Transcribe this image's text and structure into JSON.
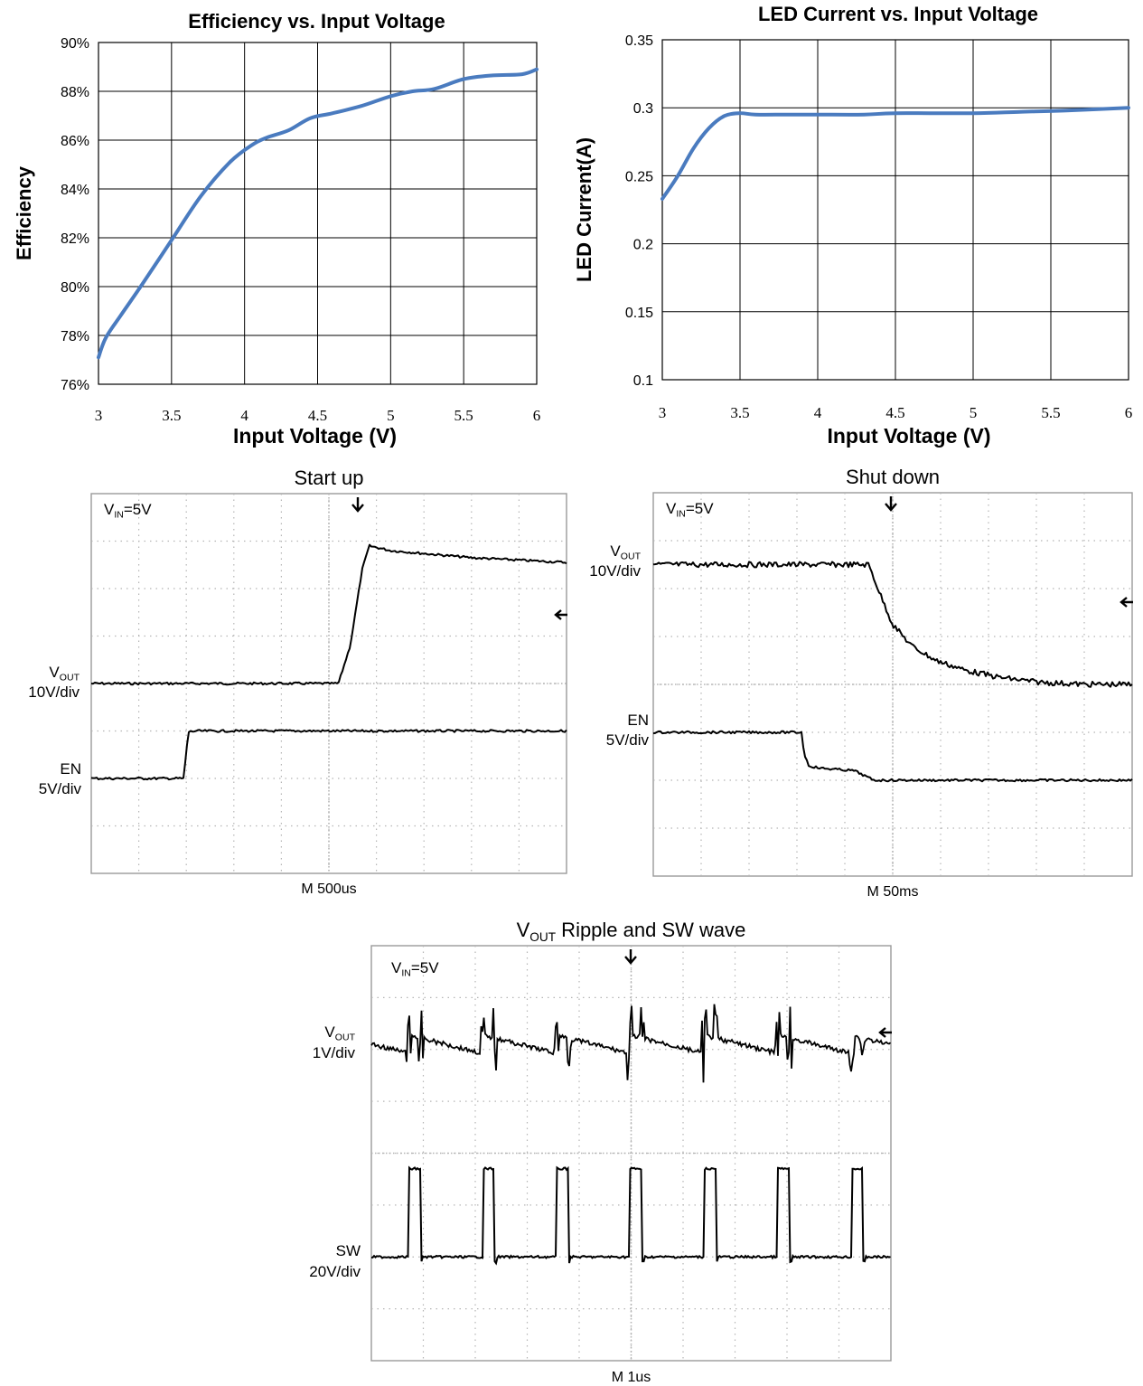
{
  "chart_data": [
    {
      "type": "line",
      "title": "Efficiency vs. Input Voltage",
      "xlabel": "Input Voltage (V)",
      "ylabel": "Efficiency",
      "xlim": [
        3,
        6
      ],
      "ylim": [
        76,
        90
      ],
      "x_ticks": [
        "3",
        "3.5",
        "4",
        "4.5",
        "5",
        "5.5",
        "6"
      ],
      "y_ticks": [
        "76%",
        "78%",
        "80%",
        "82%",
        "84%",
        "86%",
        "88%",
        "90%"
      ],
      "grid": true,
      "line_color": "#4a7bbf",
      "series": [
        {
          "x": [
            3.0,
            3.05,
            3.15,
            3.3,
            3.5,
            3.7,
            3.9,
            4.05,
            4.15,
            4.3,
            4.45,
            4.6,
            4.8,
            5.0,
            5.15,
            5.3,
            5.5,
            5.7,
            5.9,
            6.0
          ],
          "y": [
            77.1,
            77.9,
            78.8,
            80.1,
            81.9,
            83.7,
            85.1,
            85.8,
            86.1,
            86.4,
            86.9,
            87.1,
            87.4,
            87.8,
            88.0,
            88.1,
            88.5,
            88.65,
            88.7,
            88.9
          ]
        }
      ]
    },
    {
      "type": "line",
      "title": "LED Current vs. Input Voltage",
      "xlabel": "Input Voltage (V)",
      "ylabel": "LED Current(A)",
      "xlim": [
        3,
        6
      ],
      "ylim": [
        0.1,
        0.35
      ],
      "x_ticks": [
        "3",
        "3.5",
        "4",
        "4.5",
        "5",
        "5.5",
        "6"
      ],
      "y_ticks": [
        "0.1",
        "0.15",
        "0.2",
        "0.25",
        "0.3",
        "0.35"
      ],
      "grid": true,
      "line_color": "#4a7bbf",
      "series": [
        {
          "x": [
            3.0,
            3.1,
            3.2,
            3.3,
            3.4,
            3.5,
            3.6,
            3.8,
            4.0,
            4.3,
            4.5,
            5.0,
            5.3,
            5.6,
            6.0
          ],
          "y": [
            0.233,
            0.25,
            0.27,
            0.285,
            0.294,
            0.296,
            0.295,
            0.295,
            0.295,
            0.295,
            0.296,
            0.296,
            0.297,
            0.298,
            0.3
          ]
        }
      ]
    },
    {
      "type": "line",
      "title": "Start up",
      "timebase": "M 500us",
      "vin_label": "V",
      "vin_sub": "IN",
      "vin_value": "=5V",
      "div_count": [
        10,
        8
      ],
      "series": [
        {
          "name_main": "V",
          "name_sub": "OUT",
          "scale": "10V/div",
          "x": [
            0,
            5.2,
            5.45,
            5.7,
            5.85,
            6.3,
            8,
            10
          ],
          "y": [
            4.0,
            4.0,
            4.8,
            6.4,
            6.9,
            6.8,
            6.65,
            6.55
          ]
        },
        {
          "name_main": "EN",
          "name_sub": "",
          "scale": "5V/div",
          "x": [
            0,
            1.95,
            2.0,
            2.05,
            2.2,
            10
          ],
          "y": [
            2.0,
            2.0,
            2.6,
            2.98,
            3.0,
            3.0
          ]
        }
      ]
    },
    {
      "type": "line",
      "title": "Shut down",
      "timebase": "M 50ms",
      "vin_label": "V",
      "vin_sub": "IN",
      "vin_value": "=5V",
      "div_count": [
        10,
        8
      ],
      "series": [
        {
          "name_main": "V",
          "name_sub": "OUT",
          "scale": "10V/div",
          "x": [
            0,
            4.5,
            4.75,
            5.0,
            5.4,
            5.9,
            6.5,
            7.2,
            8.0,
            9.0,
            10
          ],
          "y": [
            6.5,
            6.5,
            5.85,
            5.25,
            4.8,
            4.5,
            4.3,
            4.15,
            4.05,
            4.0,
            4.0
          ]
        },
        {
          "name_main": "EN",
          "name_sub": "",
          "scale": "5V/div",
          "x": [
            0,
            3.1,
            3.15,
            3.25,
            3.5,
            4.2,
            4.4,
            4.6,
            5.2,
            10
          ],
          "y": [
            3.0,
            3.0,
            2.55,
            2.3,
            2.25,
            2.2,
            2.1,
            2.0,
            2.0,
            2.0
          ]
        }
      ]
    },
    {
      "type": "line",
      "title_main": "V",
      "title_sub": "OUT",
      "title_rest": " Ripple and SW wave",
      "timebase": "M 1us",
      "vin_label": "V",
      "vin_sub": "IN",
      "vin_value": "=5V",
      "div_count": [
        10,
        8
      ],
      "switching_period_div": 1.42,
      "first_edge_div": 0.72,
      "duty_cycle": 0.16,
      "series": [
        {
          "name_main": "V",
          "name_sub": "OUT",
          "scale": "1V/div",
          "baseline": 6.1,
          "ripple_pp": 0.35
        },
        {
          "name_main": "SW",
          "name_sub": "",
          "scale": "20V/div",
          "low": 2.0,
          "high": 3.7
        }
      ]
    }
  ]
}
